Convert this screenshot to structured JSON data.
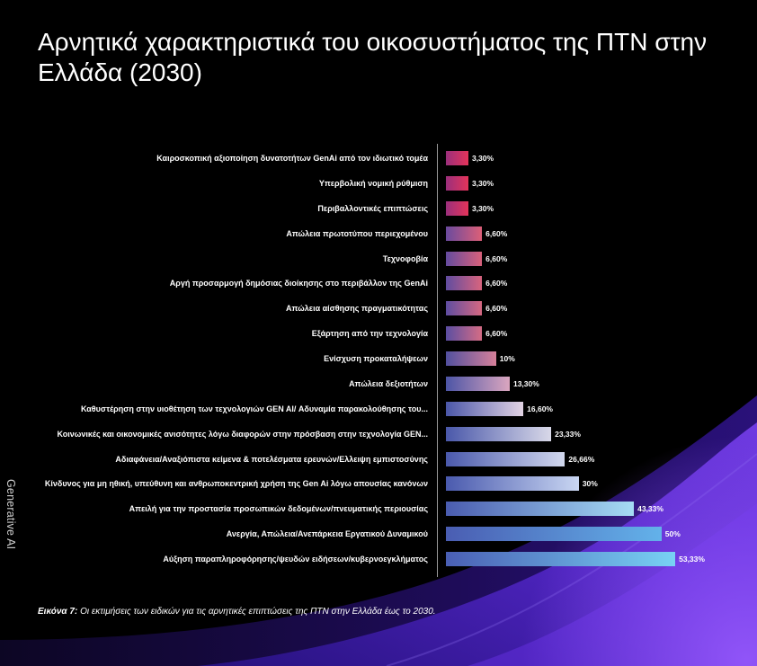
{
  "theme": {
    "background": "#000000",
    "text": "#ffffff",
    "axis": "#9a9a9a",
    "side_label": "#cfcfcf",
    "accent_purple": "#7c42f4"
  },
  "page": {
    "side_label": "Generative AI",
    "caption_label": "Εικόνα 7:",
    "caption_text": "Οι εκτιμήσεις των ειδικών για τις αρνητικές επιπτώσεις της ΠΤΝ στην Ελλάδα έως το 2030."
  },
  "chart_data": {
    "type": "bar",
    "orientation": "horizontal",
    "title": "Αρνητικά χαρακτηριστικά του οικοσυστήματος της ΠΤΝ στην Ελλάδα (2030)",
    "grid": false,
    "legend": "none",
    "categories": [
      "Καιροσκοπική αξιοποίηση δυνατοτήτων GenAi από τον ιδιωτικό τομέα",
      "Υπερβολική νομική ρύθμιση",
      "Περιβαλλοντικές επιπτώσεις",
      "Απώλεια πρωτοτύπου περιεχομένου",
      "Τεχνοφοβία",
      "Αργή προσαρμογή δημόσιας διοίκησης στο περιβάλλον της GenAi",
      "Απώλεια αίσθησης πραγματικότητας",
      "Εξάρτηση από την τεχνολογία",
      "Ενίσχυση προκαταλήψεων",
      "Απώλεια δεξιοτήτων",
      "Καθυστέρηση στην υιοθέτηση των τεχνολογιών GEN AI/ Αδυναμία παρακολούθησης του...",
      "Κοινωνικές και οικονομικές ανισότητες λόγω διαφορών στην πρόσβαση στην τεχνολογία GEN...",
      "Αδιαφάνεια/Αναξιόπιστα κείμενα & ποτελέσματα ερευνών/Ελλειψη εμπιστοσύνης",
      "Κίνδυνος για μη ηθική, υπεύθυνη και ανθρωποκεντρική χρήση της Gen Ai λόγω απουσίας κανόνων",
      "Απειλή για την προστασία προσωπικών δεδομένων/πνευματικής περιουσίας",
      "Ανεργία, Απώλεια/Ανεπάρκεια Εργατικού Δυναμικού",
      "Αύξηση παραπληροφόρησης/ψευδών ειδήσεων/κυβερνοεγκλήματος"
    ],
    "values": [
      3.3,
      3.3,
      3.3,
      6.6,
      6.6,
      6.6,
      6.6,
      6.6,
      10,
      13.3,
      16.6,
      23.33,
      26.66,
      30,
      43.33,
      50,
      53.33
    ],
    "data_labels": [
      "3,30%",
      "3,30%",
      "3,30%",
      "6,60%",
      "6,60%",
      "6,60%",
      "6,60%",
      "6,60%",
      "10%",
      "13,30%",
      "16,60%",
      "23,33%",
      "26,66%",
      "30%",
      "43,33%",
      "50%",
      "53,33%"
    ],
    "bar_colors": [
      [
        "#9b2f7c",
        "#e4345a"
      ],
      [
        "#9b2f7c",
        "#e4345a"
      ],
      [
        "#9b2f7c",
        "#e4345a"
      ],
      [
        "#6a4a9e",
        "#dc5f78"
      ],
      [
        "#644b9f",
        "#d9617b"
      ],
      [
        "#614ca0",
        "#d8647e"
      ],
      [
        "#5e4da1",
        "#d66881"
      ],
      [
        "#5b4ea2",
        "#d56c85"
      ],
      [
        "#52509f",
        "#d6809a"
      ],
      [
        "#4d55a6",
        "#dba6bf"
      ],
      [
        "#4b57a9",
        "#e2d3e3"
      ],
      [
        "#4a58aa",
        "#d8d8e8"
      ],
      [
        "#4a59ac",
        "#d2d8ee"
      ],
      [
        "#4a5aae",
        "#c9d6f2"
      ],
      [
        "#4a5cb0",
        "#a6dcf4"
      ],
      [
        "#4a5db2",
        "#63b2ea"
      ],
      [
        "#4a5fb4",
        "#78d2f4"
      ]
    ]
  }
}
